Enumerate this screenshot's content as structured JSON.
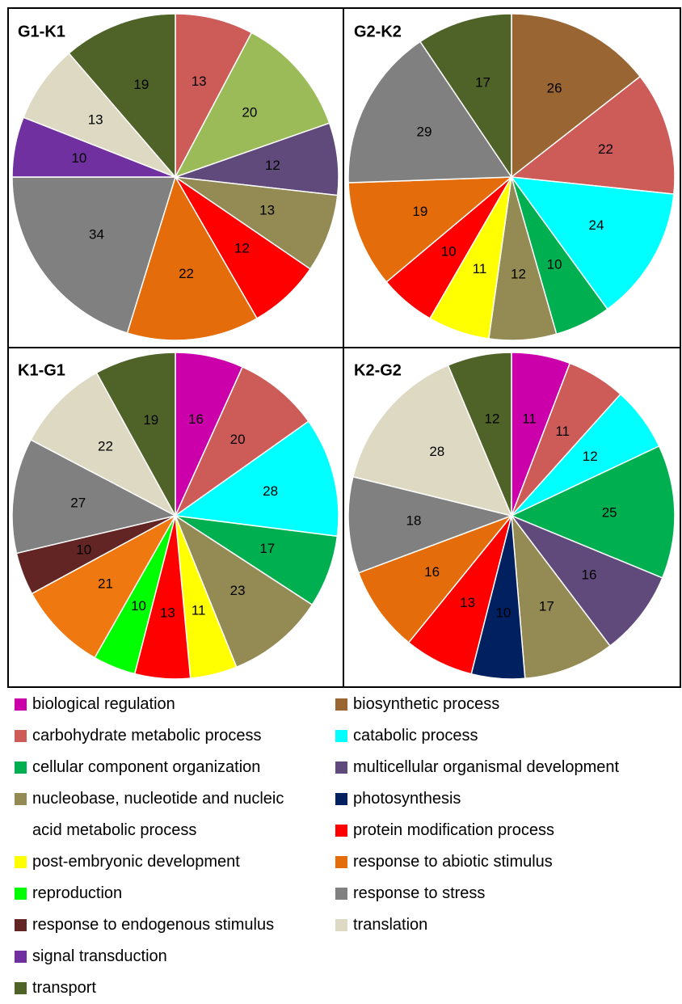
{
  "chart_data": [
    {
      "type": "pie",
      "title": "G1-K1",
      "categories": [
        "carbohydrate metabolic process",
        "cellular component organization",
        "multicellular organismal development",
        "nucleobase, nucleotide and nucleic acid metabolic process",
        "protein modification process",
        "response to abiotic stimulus",
        "response to stress",
        "signal transduction",
        "translation",
        "transport"
      ],
      "values": [
        13,
        20,
        12,
        13,
        12,
        22,
        34,
        10,
        13,
        19
      ],
      "colors": [
        "#cd5b57",
        "#9bbb59",
        "#604a7b",
        "#948a54",
        "#ff0000",
        "#e46c0a",
        "#808080",
        "#7030a0",
        "#ddd9c3",
        "#4f6228"
      ]
    },
    {
      "type": "pie",
      "title": "G2-K2",
      "categories": [
        "biosynthetic process",
        "carbohydrate metabolic process",
        "catabolic process",
        "cellular component organization",
        "nucleobase, nucleotide and nucleic acid metabolic process",
        "post-embryonic development",
        "protein modification process",
        "response to abiotic stimulus",
        "response to stress",
        "transport"
      ],
      "values": [
        26,
        22,
        24,
        10,
        12,
        11,
        10,
        19,
        29,
        17
      ],
      "colors": [
        "#996633",
        "#cd5b57",
        "#00ffff",
        "#00b050",
        "#948a54",
        "#ffff00",
        "#ff0000",
        "#e46c0a",
        "#808080",
        "#4f6228"
      ]
    },
    {
      "type": "pie",
      "title": "K1-G1",
      "categories": [
        "biological regulation",
        "carbohydrate metabolic process",
        "catabolic process",
        "cellular component organization",
        "nucleobase, nucleotide and nucleic acid metabolic process",
        "post-embryonic development",
        "protein modification process",
        "reproduction",
        "response to abiotic stimulus",
        "response to endogenous stimulus",
        "response to stress",
        "translation",
        "transport"
      ],
      "values": [
        16,
        20,
        28,
        17,
        23,
        11,
        13,
        10,
        21,
        10,
        27,
        22,
        19
      ],
      "colors": [
        "#cc00aa",
        "#cd5b57",
        "#00ffff",
        "#00b050",
        "#948a54",
        "#ffff00",
        "#ff0000",
        "#00ff00",
        "#f07810",
        "#632523",
        "#808080",
        "#ddd9c3",
        "#4f6228"
      ]
    },
    {
      "type": "pie",
      "title": "K2-G2",
      "categories": [
        "biological regulation",
        "carbohydrate metabolic process",
        "catabolic process",
        "cellular component organization",
        "multicellular organismal development",
        "nucleobase, nucleotide and nucleic acid metabolic process",
        "photosynthesis",
        "protein modification process",
        "response to abiotic stimulus",
        "response to stress",
        "translation",
        "transport"
      ],
      "values": [
        11,
        11,
        12,
        25,
        16,
        17,
        10,
        13,
        16,
        18,
        28,
        12
      ],
      "colors": [
        "#cc00aa",
        "#cd5b57",
        "#00ffff",
        "#00b050",
        "#604a7b",
        "#948a54",
        "#002060",
        "#ff0000",
        "#e46c0a",
        "#808080",
        "#ddd9c3",
        "#4f6228"
      ]
    }
  ],
  "legend": {
    "columns": [
      [
        {
          "name": "biological regulation",
          "color": "#cc00aa"
        },
        {
          "name": "carbohydrate metabolic process",
          "color": "#cd5b57"
        },
        {
          "name": "cellular component organization",
          "color": "#00b050"
        },
        {
          "name": "nucleobase, nucleotide and nucleic acid metabolic process",
          "color": "#948a54"
        },
        {
          "name": "post-embryonic development",
          "color": "#ffff00"
        },
        {
          "name": "reproduction",
          "color": "#00ff00"
        },
        {
          "name": "response to endogenous stimulus",
          "color": "#632523"
        },
        {
          "name": "signal transduction",
          "color": "#7030a0"
        },
        {
          "name": "transport",
          "color": "#4f6228"
        }
      ],
      [
        {
          "name": "biosynthetic process",
          "color": "#996633"
        },
        {
          "name": "catabolic process",
          "color": "#00ffff"
        },
        {
          "name": "multicellular organismal development",
          "color": "#604a7b"
        },
        {
          "name": "photosynthesis",
          "color": "#002060"
        },
        {
          "name": "protein modification process",
          "color": "#ff0000"
        },
        {
          "name": "response to abiotic stimulus",
          "color": "#e46c0a"
        },
        {
          "name": "response to stress",
          "color": "#808080"
        },
        {
          "name": "translation",
          "color": "#ddd9c3"
        }
      ]
    ]
  }
}
